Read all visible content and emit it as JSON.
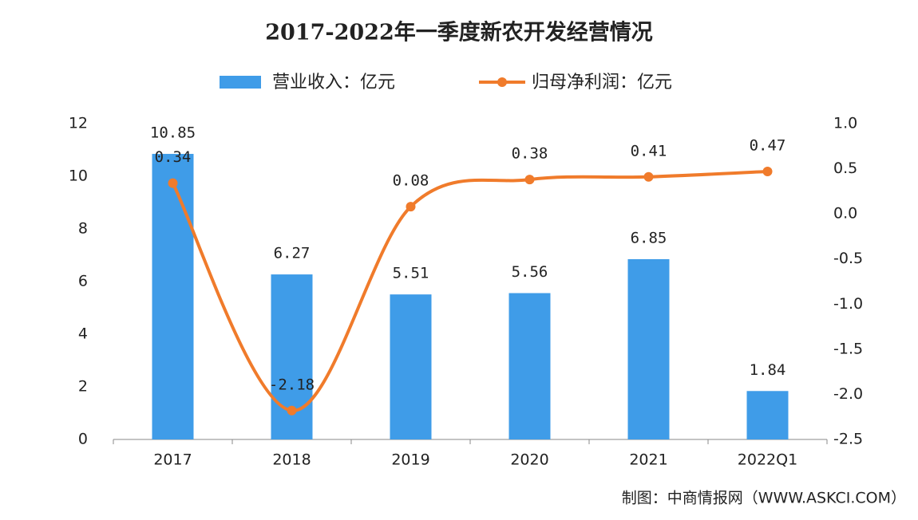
{
  "chart_data": {
    "type": "bar-line",
    "title": "2017-2022年一季度新农开发经营情况",
    "categories": [
      "2017",
      "2018",
      "2019",
      "2020",
      "2021",
      "2022Q1"
    ],
    "series": [
      {
        "name": "营业收入：亿元",
        "type": "bar",
        "color": "#3f9ce8",
        "values": [
          10.85,
          6.27,
          5.51,
          5.56,
          6.85,
          1.84
        ]
      },
      {
        "name": "归母净利润：亿元",
        "type": "line",
        "axis": "y2",
        "color": "#f07b2b",
        "values": [
          0.34,
          -2.18,
          0.08,
          0.38,
          0.41,
          0.47
        ]
      }
    ],
    "ylim": [
      0,
      12
    ],
    "yticks": [
      0,
      2,
      4,
      6,
      8,
      10,
      12
    ],
    "y2lim": [
      -2.5,
      1.0
    ],
    "y2ticks": [
      -2.5,
      {
        "value": -2,
        "label": "-2.0"
      },
      -1.5,
      {
        "value": -1,
        "label": "-1.0"
      },
      -0.5,
      {
        "value": 0,
        "label": "0.0"
      },
      0.5,
      {
        "value": 1,
        "label": "1.0"
      }
    ],
    "grid": false,
    "source": "制图：中商情报网（WWW.ASKCI.COM）"
  }
}
